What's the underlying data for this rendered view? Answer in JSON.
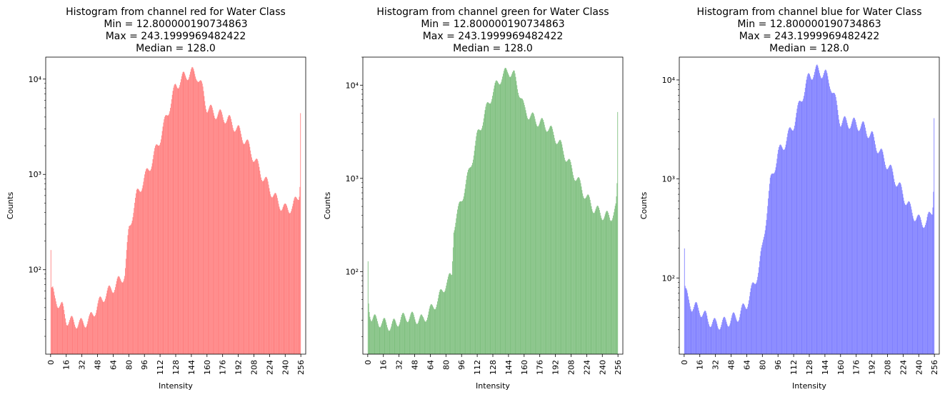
{
  "chart_data": [
    {
      "type": "bar",
      "title_lines": [
        "Histogram from channel red for Water Class",
        "Min =  12.800000190734863",
        "Max = 243.1999969482422",
        "Median = 128.0"
      ],
      "xlabel": "Intensity",
      "ylabel": "Counts",
      "yscale": "log",
      "grid": false,
      "color": "#ff8080",
      "xlim": [
        -5,
        261
      ],
      "ylim": [
        13,
        17000
      ],
      "xticks": [
        0,
        16,
        32,
        48,
        64,
        80,
        96,
        112,
        128,
        144,
        160,
        176,
        192,
        208,
        224,
        240,
        256
      ],
      "yticks": [
        {
          "value": 100,
          "label": "10²"
        },
        {
          "value": 1000,
          "label": "10³"
        },
        {
          "value": 10000,
          "label": "10⁴"
        }
      ],
      "bin_range": [
        0,
        256
      ],
      "envelope": [
        [
          0,
          260
        ],
        [
          1,
          58
        ],
        [
          2,
          60
        ],
        [
          4,
          50
        ],
        [
          8,
          45
        ],
        [
          12,
          40
        ],
        [
          16,
          30
        ],
        [
          24,
          28
        ],
        [
          32,
          27
        ],
        [
          40,
          30
        ],
        [
          48,
          42
        ],
        [
          56,
          55
        ],
        [
          64,
          65
        ],
        [
          72,
          80
        ],
        [
          76,
          90
        ],
        [
          80,
          260
        ],
        [
          88,
          600
        ],
        [
          96,
          900
        ],
        [
          104,
          1400
        ],
        [
          112,
          2400
        ],
        [
          120,
          4500
        ],
        [
          128,
          8500
        ],
        [
          136,
          10500
        ],
        [
          144,
          11800
        ],
        [
          150,
          11000
        ],
        [
          156,
          7500
        ],
        [
          160,
          5000
        ],
        [
          168,
          4400
        ],
        [
          176,
          4100
        ],
        [
          184,
          3600
        ],
        [
          192,
          2900
        ],
        [
          200,
          2200
        ],
        [
          208,
          1500
        ],
        [
          216,
          1000
        ],
        [
          224,
          720
        ],
        [
          232,
          520
        ],
        [
          240,
          430
        ],
        [
          248,
          460
        ],
        [
          254,
          620
        ],
        [
          255,
          750
        ],
        [
          256,
          11500
        ]
      ]
    },
    {
      "type": "bar",
      "title_lines": [
        "Histogram from channel green for Water Class",
        "Min =  12.800000190734863",
        "Max = 243.1999969482422",
        "Median = 128.0"
      ],
      "xlabel": "Intensity",
      "ylabel": "Counts",
      "yscale": "log",
      "grid": false,
      "color": "#80c080",
      "xlim": [
        -5,
        261
      ],
      "ylim": [
        13,
        20000
      ],
      "xticks": [
        0,
        16,
        32,
        48,
        64,
        80,
        96,
        112,
        128,
        144,
        160,
        176,
        192,
        208,
        224,
        240,
        256
      ],
      "yticks": [
        {
          "value": 100,
          "label": "10²"
        },
        {
          "value": 1000,
          "label": "10³"
        },
        {
          "value": 10000,
          "label": "10⁴"
        }
      ],
      "bin_range": [
        0,
        256
      ],
      "envelope": [
        [
          0,
          210
        ],
        [
          1,
          45
        ],
        [
          2,
          38
        ],
        [
          4,
          32
        ],
        [
          8,
          30
        ],
        [
          16,
          28
        ],
        [
          24,
          26
        ],
        [
          32,
          30
        ],
        [
          40,
          33
        ],
        [
          48,
          32
        ],
        [
          56,
          30
        ],
        [
          64,
          38
        ],
        [
          72,
          50
        ],
        [
          80,
          75
        ],
        [
          86,
          90
        ],
        [
          88,
          300
        ],
        [
          96,
          600
        ],
        [
          104,
          1200
        ],
        [
          112,
          2800
        ],
        [
          120,
          5000
        ],
        [
          128,
          8500
        ],
        [
          136,
          12000
        ],
        [
          144,
          14500
        ],
        [
          150,
          12500
        ],
        [
          156,
          8000
        ],
        [
          160,
          5500
        ],
        [
          168,
          4500
        ],
        [
          176,
          4000
        ],
        [
          184,
          3600
        ],
        [
          192,
          2800
        ],
        [
          200,
          2000
        ],
        [
          208,
          1300
        ],
        [
          216,
          900
        ],
        [
          224,
          620
        ],
        [
          232,
          470
        ],
        [
          240,
          410
        ],
        [
          248,
          380
        ],
        [
          254,
          480
        ],
        [
          255,
          700
        ],
        [
          256,
          11500
        ]
      ]
    },
    {
      "type": "bar",
      "title_lines": [
        "Histogram from channel blue for Water Class",
        "Min =  12.800000190734863",
        "Max = 243.1999969482422",
        "Median = 128.0"
      ],
      "xlabel": "Intensity",
      "ylabel": "Counts",
      "yscale": "log",
      "grid": false,
      "color": "#8080ff",
      "xlim": [
        -5,
        261
      ],
      "ylim": [
        17,
        17000
      ],
      "xticks": [
        0,
        16,
        32,
        48,
        64,
        80,
        96,
        112,
        128,
        144,
        160,
        176,
        192,
        208,
        224,
        240,
        256
      ],
      "yticks": [
        {
          "value": 100,
          "label": "10²"
        },
        {
          "value": 1000,
          "label": "10³"
        },
        {
          "value": 10000,
          "label": "10⁴"
        }
      ],
      "bin_range": [
        0,
        256
      ],
      "envelope": [
        [
          0,
          320
        ],
        [
          1,
          75
        ],
        [
          2,
          70
        ],
        [
          4,
          60
        ],
        [
          8,
          52
        ],
        [
          16,
          48
        ],
        [
          24,
          38
        ],
        [
          32,
          34
        ],
        [
          40,
          35
        ],
        [
          48,
          38
        ],
        [
          56,
          42
        ],
        [
          64,
          55
        ],
        [
          72,
          90
        ],
        [
          76,
          120
        ],
        [
          80,
          200
        ],
        [
          88,
          900
        ],
        [
          96,
          1800
        ],
        [
          104,
          2400
        ],
        [
          112,
          3600
        ],
        [
          120,
          6500
        ],
        [
          128,
          11000
        ],
        [
          136,
          12500
        ],
        [
          144,
          11500
        ],
        [
          150,
          9000
        ],
        [
          156,
          5500
        ],
        [
          160,
          3800
        ],
        [
          168,
          3700
        ],
        [
          176,
          3600
        ],
        [
          184,
          3300
        ],
        [
          192,
          2700
        ],
        [
          200,
          1900
        ],
        [
          208,
          1400
        ],
        [
          216,
          1000
        ],
        [
          224,
          700
        ],
        [
          232,
          480
        ],
        [
          240,
          380
        ],
        [
          248,
          360
        ],
        [
          254,
          500
        ],
        [
          255,
          760
        ],
        [
          256,
          10500
        ]
      ]
    }
  ]
}
